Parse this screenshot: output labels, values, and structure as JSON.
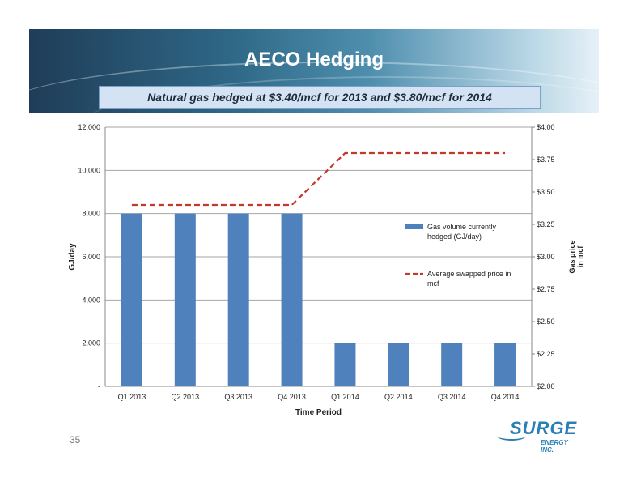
{
  "slide": {
    "title": "AECO Hedging",
    "subtitle": "Natural gas hedged at $3.40/mcf for 2013 and $3.80/mcf for 2014",
    "page_number": "35",
    "logo_text": "SURGE",
    "logo_subtext": "ENERGY INC."
  },
  "chart_data": {
    "type": "bar",
    "title": "",
    "xlabel": "Time Period",
    "ylabel": "GJ/day",
    "y2label": "Gas price in mcf",
    "categories": [
      "Q1 2013",
      "Q2 2013",
      "Q3 2013",
      "Q4 2013",
      "Q1 2014",
      "Q2 2014",
      "Q3 2014",
      "Q4 2014"
    ],
    "series": [
      {
        "name": "Gas volume currently hedged (GJ/day)",
        "type": "bar",
        "axis": "left",
        "color": "#4f81bd",
        "values": [
          8000,
          8000,
          8000,
          8000,
          2000,
          2000,
          2000,
          2000
        ]
      },
      {
        "name": "Average swapped price in mcf",
        "type": "line",
        "style": "dashed",
        "axis": "right",
        "color": "#c0392b",
        "values": [
          3.4,
          3.4,
          3.4,
          3.4,
          3.8,
          3.8,
          3.8,
          3.8
        ]
      }
    ],
    "ylim": [
      0,
      12000
    ],
    "y_ticks": [
      "-",
      "2,000",
      "4,000",
      "6,000",
      "8,000",
      "10,000",
      "12,000"
    ],
    "y2lim": [
      2.0,
      4.0
    ],
    "y2_ticks": [
      "$2.00",
      "$2.25",
      "$2.50",
      "$2.75",
      "$3.00",
      "$3.25",
      "$3.50",
      "$3.75",
      "$4.00"
    ],
    "grid": true,
    "legend_position": "right"
  }
}
